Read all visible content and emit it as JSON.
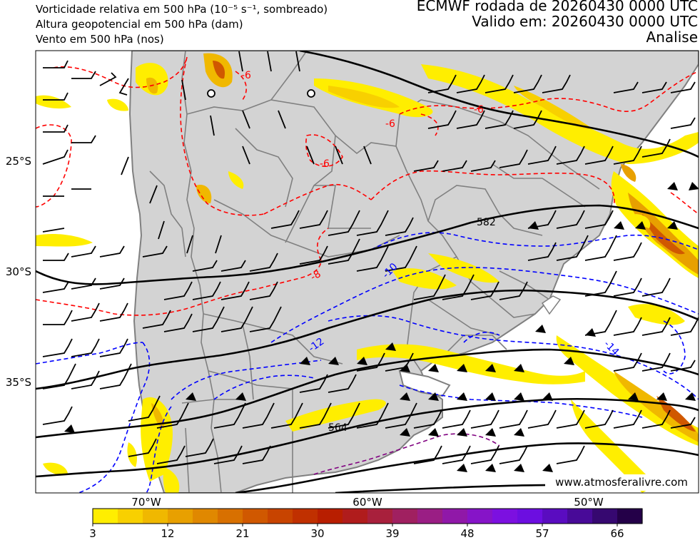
{
  "header": {
    "left_lines": [
      "Vorticidade relativa em 500 hPa (10⁻⁵ s⁻¹, sombreado)",
      "Altura geopotencial em 500 hPa (dam)",
      "Vento em 500 hPa (nos)"
    ],
    "right_lines": [
      "ECMWF rodada de 20260430 0000 UTC",
      "Valido em: 20260430 0000 UTC",
      "Analise"
    ]
  },
  "map": {
    "lat_labels": [
      "25°S",
      "30°S",
      "35°S"
    ],
    "lon_labels": [
      "70°W",
      "60°W",
      "50°W"
    ],
    "geopotential_labels": [
      "582",
      "564"
    ],
    "vorticity_labels_red": [
      "-6",
      "-6",
      "-6",
      "-6",
      "-8"
    ],
    "vorticity_labels_blue": [
      "-10",
      "-12",
      "-14"
    ],
    "colors": {
      "land": "#d3d3d3",
      "ocean": "#ffffff",
      "borders": "#808080",
      "geopotential": "#000000",
      "vort_red": "#ff0000",
      "vort_blue": "#0000ff",
      "vort_purple": "#800080"
    }
  },
  "colorbar": {
    "tick_labels": [
      "3",
      "12",
      "21",
      "30",
      "39",
      "48",
      "57",
      "66"
    ],
    "colors": [
      "#ffee00",
      "#f8d000",
      "#f0b800",
      "#e8a000",
      "#e08800",
      "#d87000",
      "#d05800",
      "#c84400",
      "#c03000",
      "#b81e00",
      "#b01c1c",
      "#a8203c",
      "#a02060",
      "#9a1e84",
      "#9018a8",
      "#8614c8",
      "#7c10e0",
      "#6c0ee0",
      "#5a0cc0",
      "#480a98",
      "#360870",
      "#240048"
    ]
  },
  "watermark": "www.atmosferalivre.com"
}
